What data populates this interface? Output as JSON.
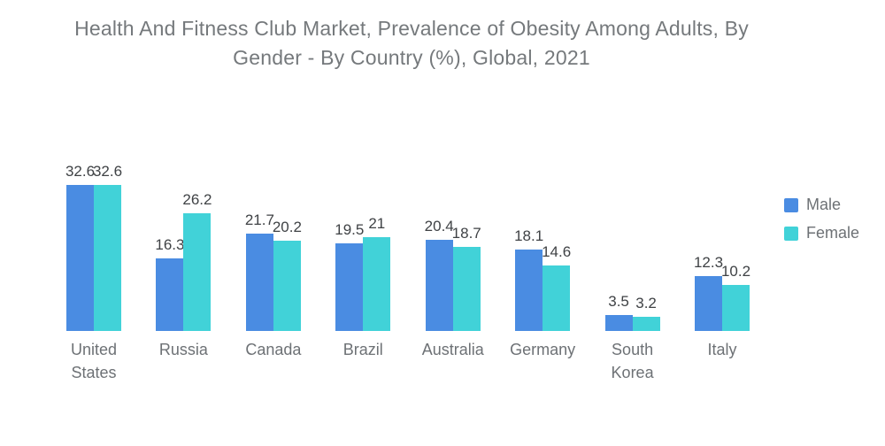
{
  "title": {
    "line1": "Health And Fitness Club Market, Prevalence of Obesity Among Adults, By",
    "line2": "Gender - By Country (%), Global, 2021"
  },
  "chart_data": {
    "type": "bar",
    "title": "Health And Fitness Club Market, Prevalence of Obesity Among Adults, By Gender - By Country (%), Global, 2021",
    "categories": [
      "United States",
      "Russia",
      "Canada",
      "Brazil",
      "Australia",
      "Germany",
      "South Korea",
      "Italy"
    ],
    "series": [
      {
        "name": "Male",
        "color": "#4a8ce2",
        "values": [
          32.6,
          16.3,
          21.7,
          19.5,
          20.4,
          18.1,
          3.5,
          12.3
        ]
      },
      {
        "name": "Female",
        "color": "#41d2d8",
        "values": [
          32.6,
          26.2,
          20.2,
          21,
          18.7,
          14.6,
          3.2,
          10.2
        ]
      }
    ],
    "xlabel": "",
    "ylabel": "",
    "ylim": [
      0,
      36
    ],
    "grid": false,
    "axes_visible": false,
    "value_labels": true,
    "legend_position": "right"
  }
}
